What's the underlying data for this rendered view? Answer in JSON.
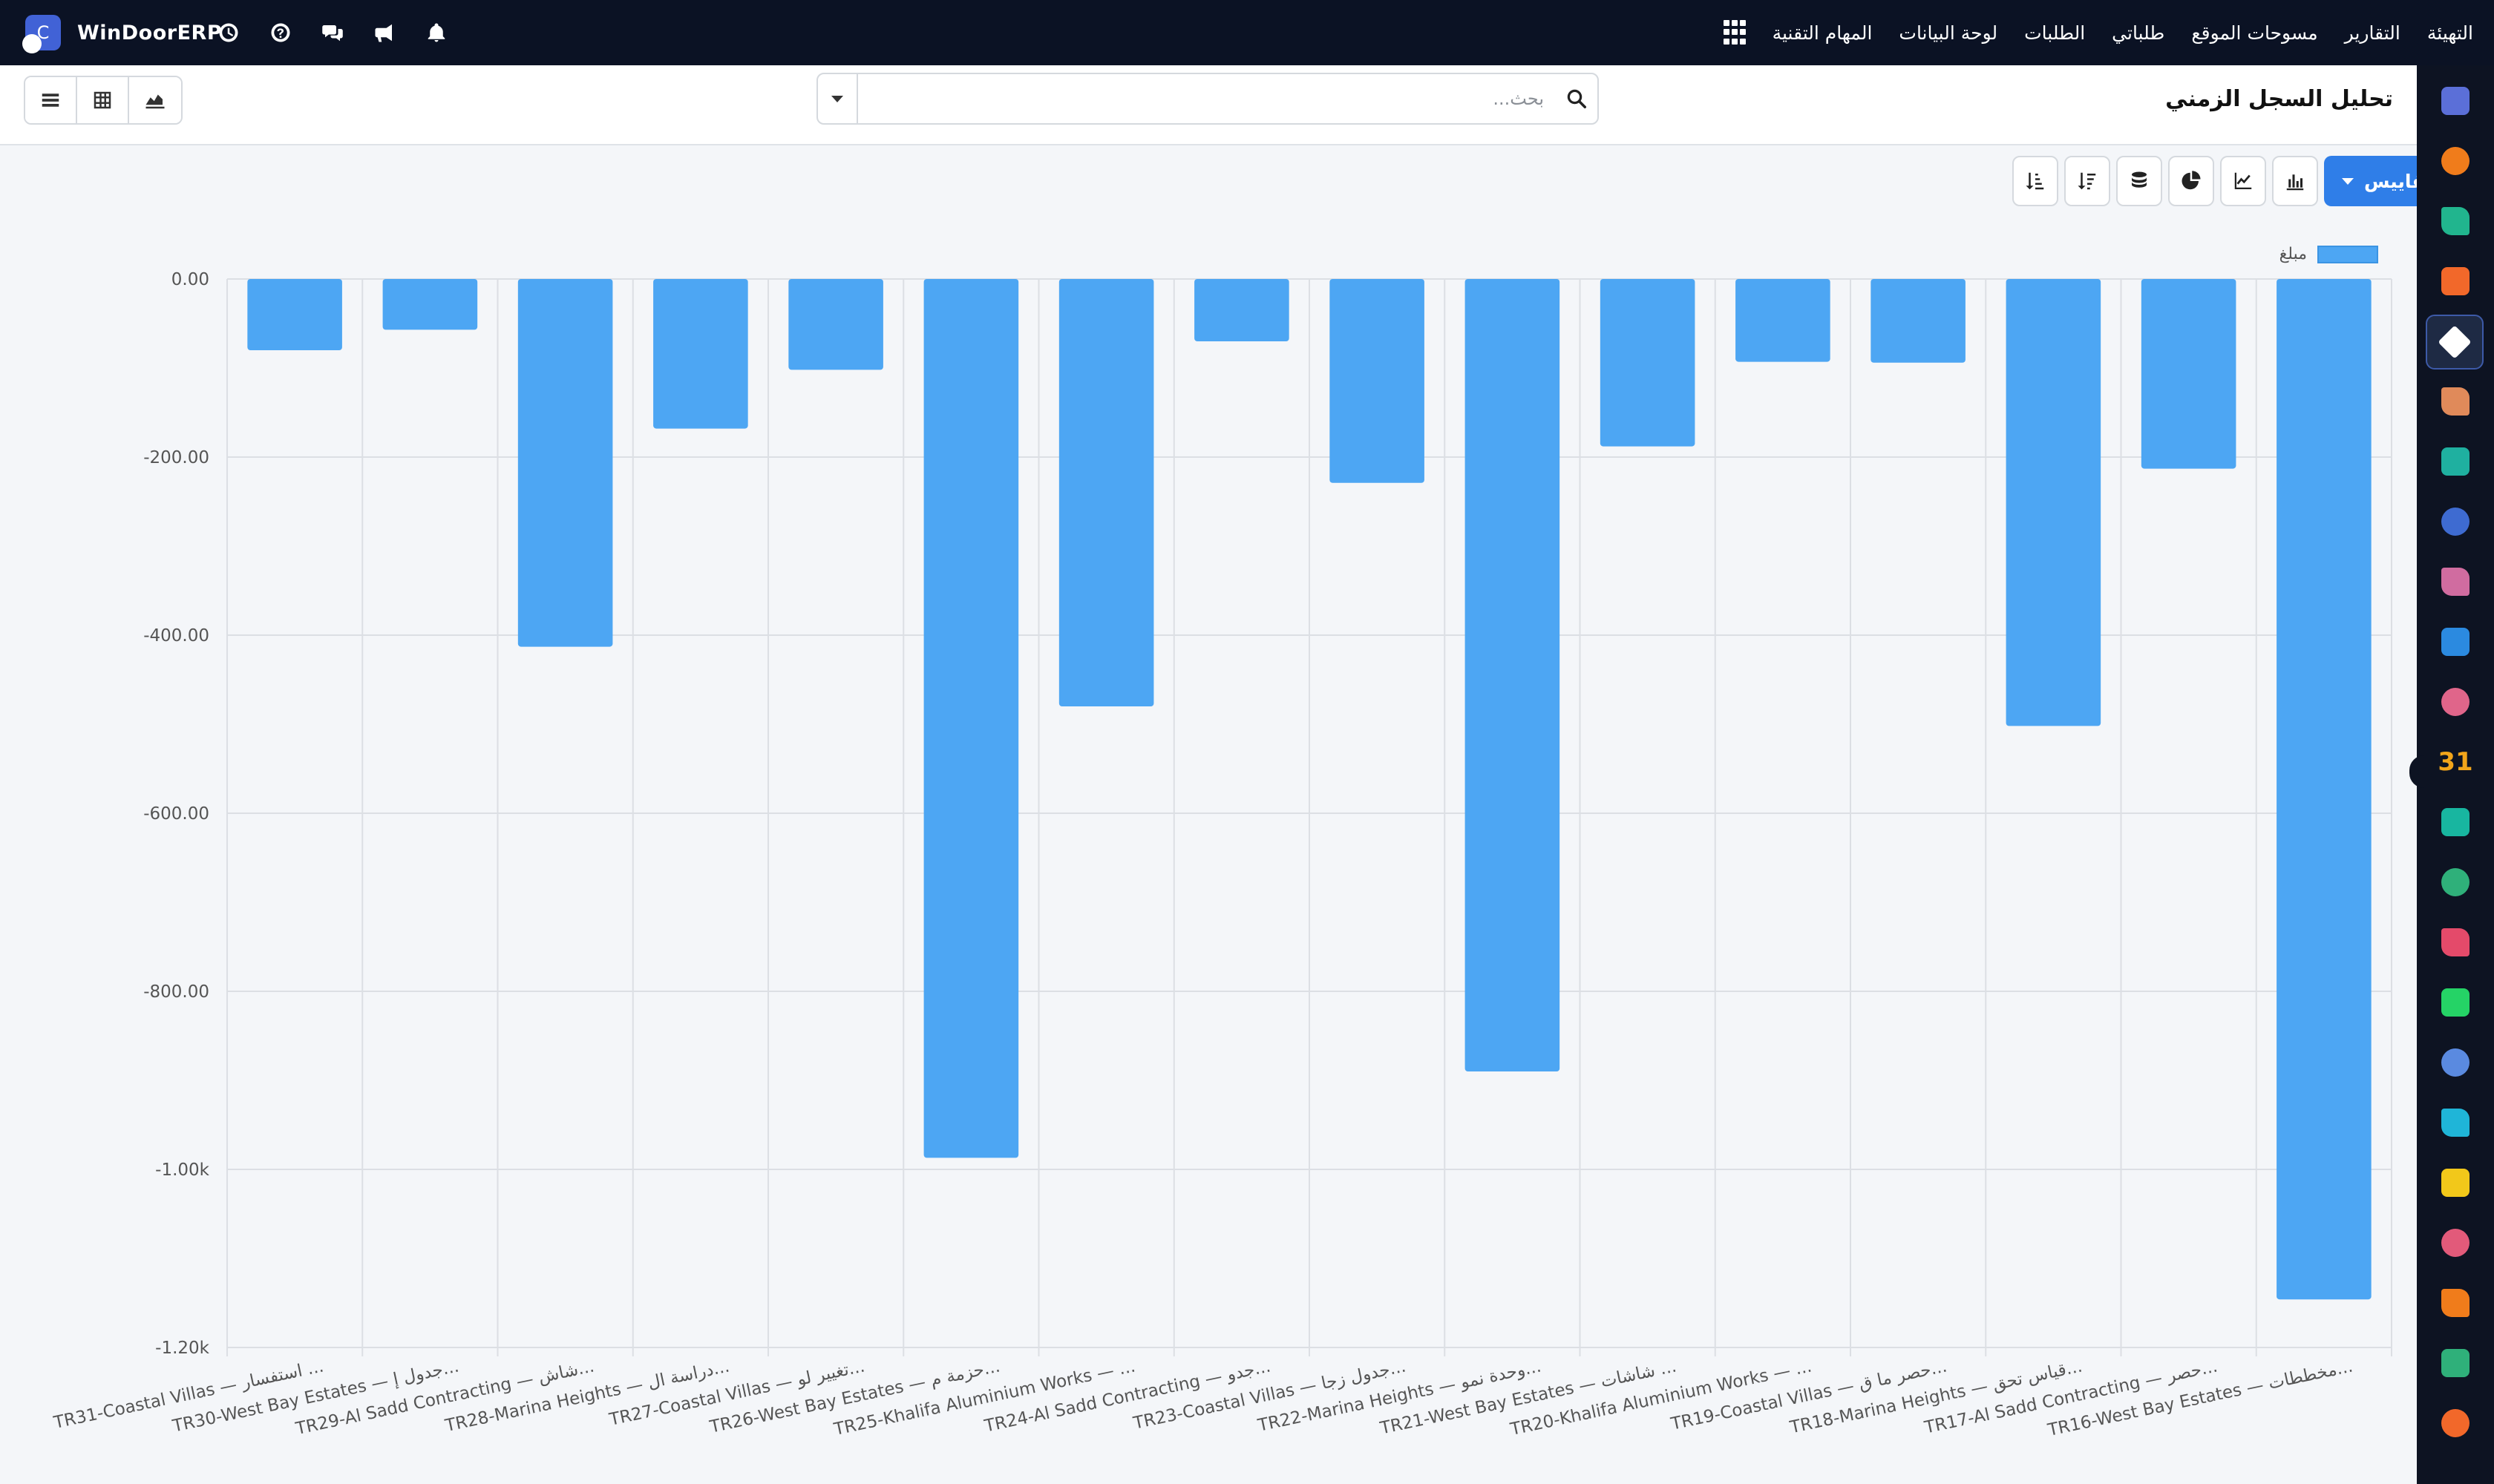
{
  "brand": {
    "name": "WinDoorERP",
    "logo_letter": "C"
  },
  "navbar": {
    "menu": [
      {
        "label": "المهام التقنية"
      },
      {
        "label": "لوحة البيانات"
      },
      {
        "label": "الطلبات"
      },
      {
        "label": "طلباتي"
      },
      {
        "label": "مسوحات الموقع"
      },
      {
        "label": "التقارير"
      },
      {
        "label": "التهيئة"
      }
    ],
    "icons": [
      "clock-icon",
      "help-icon",
      "chat-icon",
      "megaphone-icon",
      "bell-icon"
    ]
  },
  "control_panel": {
    "title": "تحليل السجل الزمني",
    "search": {
      "placeholder": "بحث...",
      "value": ""
    },
    "views": [
      "list-view-icon",
      "pivot-view-icon",
      "graph-view-icon"
    ]
  },
  "chart_toolbar": {
    "measures_label": "المقاييس",
    "tools": [
      "bar-chart-icon",
      "line-chart-icon",
      "pie-chart-icon",
      "stacked-icon",
      "sort-desc-icon",
      "sort-asc-icon"
    ]
  },
  "apps_sidebar": {
    "icons": [
      {
        "name": "m-app-icon",
        "color": "#5b6fd8"
      },
      {
        "name": "chat-bubble-app-icon",
        "color": "#f07c1b"
      },
      {
        "name": "green-check-app-icon",
        "color": "#21b58e"
      },
      {
        "name": "bar-chart-app-icon",
        "color": "#f2682a"
      },
      {
        "name": "cube-app-icon",
        "color": "#ffffff",
        "active": true
      },
      {
        "name": "puzzle-app-icon",
        "color": "#e08a5a"
      },
      {
        "name": "checkmark-app-icon",
        "color": "#1fb0a0"
      },
      {
        "name": "book-app-icon",
        "color": "#3e6bd1"
      },
      {
        "name": "box-app-icon",
        "color": "#d06ca0"
      },
      {
        "name": "dollar-app-icon",
        "color": "#2b8ae0"
      },
      {
        "name": "team-app-icon",
        "color": "#e0658a"
      },
      {
        "name": "calendar-31-app-icon",
        "color": "#f2a51a",
        "text": "31"
      },
      {
        "name": "pen-app-icon",
        "color": "#18b6a0"
      },
      {
        "name": "contact-app-icon",
        "color": "#2fb07a"
      },
      {
        "name": "dashboard-app-icon",
        "color": "#e44a6a"
      },
      {
        "name": "whatsapp-app-icon",
        "color": "#25d366"
      },
      {
        "name": "compass-app-icon",
        "color": "#5a8ae0"
      },
      {
        "name": "wave-app-icon",
        "color": "#1fb5d8"
      },
      {
        "name": "send-app-icon",
        "color": "#f2c81a"
      },
      {
        "name": "card-app-icon",
        "color": "#e25a7a"
      },
      {
        "name": "hexagon-app-icon",
        "color": "#f07c1b"
      },
      {
        "name": "pie-app-icon",
        "color": "#2fb07a"
      },
      {
        "name": "settings-hex-app-icon",
        "color": "#f2682a"
      }
    ]
  },
  "chart_data": {
    "type": "bar",
    "title": "",
    "xlabel": "",
    "ylabel": "",
    "legend": {
      "label": "مبلغ",
      "position": "top-right"
    },
    "bar_color": "#4da6f3",
    "grid": true,
    "ylim": [
      0,
      -1200
    ],
    "y_ticks": [
      "0.00",
      "-200.00",
      "-400.00",
      "-600.00",
      "-800.00",
      "-1.00k",
      "-1.20k"
    ],
    "y_tick_values": [
      0,
      -200,
      -400,
      -600,
      -800,
      -1000,
      -1200
    ],
    "categories": [
      "TR31-Coastal Villas — استفسار ...",
      "TR30-West Bay Estates — جدول إ...",
      "TR29-Al Sadd Contracting — شاش...",
      "TR28-Marina Heights — دراسة ال...",
      "TR27-Coastal Villas — تغيير لو...",
      "TR26-West Bay Estates — حزمة م...",
      "TR25-Khalifa Aluminium Works — ...",
      "TR24-Al Sadd Contracting — جدو...",
      "TR23-Coastal Villas — جدول زجا...",
      "TR22-Marina Heights — وحدة نمو...",
      "TR21-West Bay Estates — شاشات ...",
      "TR20-Khalifa Aluminium Works — ...",
      "TR19-Coastal Villas — حصر ما ق...",
      "TR18-Marina Heights — قياس تحق...",
      "TR17-Al Sadd Contracting — حصر...",
      "TR16-West Bay Estates — مخططات..."
    ],
    "series": [
      {
        "name": "مبلغ",
        "values": [
          -80,
          -57,
          -413,
          -168,
          -102,
          -987,
          -480,
          -70,
          -229,
          -890,
          -188,
          -93,
          -94,
          -502,
          -213,
          -1146
        ]
      }
    ]
  }
}
